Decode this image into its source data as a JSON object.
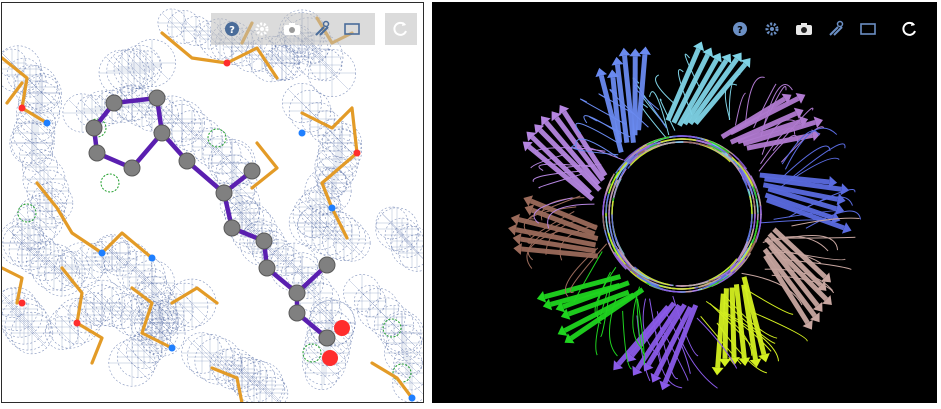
{
  "colors": {
    "left_background": "#ffffff",
    "right_background": "#000000",
    "mesh": "#5b72a8",
    "mesh_positive": "#1e9e2a",
    "carbon": "#e39b27",
    "oxygen": "#ff2d2d",
    "nitrogen": "#1f7fff",
    "ligand_bond": "#5a1fb0",
    "ligand_atom": "#808080",
    "toolbar_icon_light": "#4a6c9a",
    "toolbar_icon_dark": "#d8d8d8"
  },
  "left_viewer": {
    "toolbar": {
      "icons": [
        "help-icon",
        "gear-icon",
        "camera-icon",
        "tools-icon",
        "fullscreen-icon",
        "reset-icon"
      ]
    }
  },
  "right_viewer": {
    "toolbar": {
      "icons": [
        "help-icon",
        "gear-icon",
        "camera-icon",
        "tools-icon",
        "fullscreen-icon",
        "reset-icon"
      ]
    },
    "chain_colors": [
      "#7fd3e6",
      "#b07ad0",
      "#5a6be0",
      "#c8a6a0",
      "#d4f020",
      "#8a5ae8",
      "#1fd41f",
      "#9a6a5a",
      "#b585e0",
      "#6a8af0"
    ]
  }
}
